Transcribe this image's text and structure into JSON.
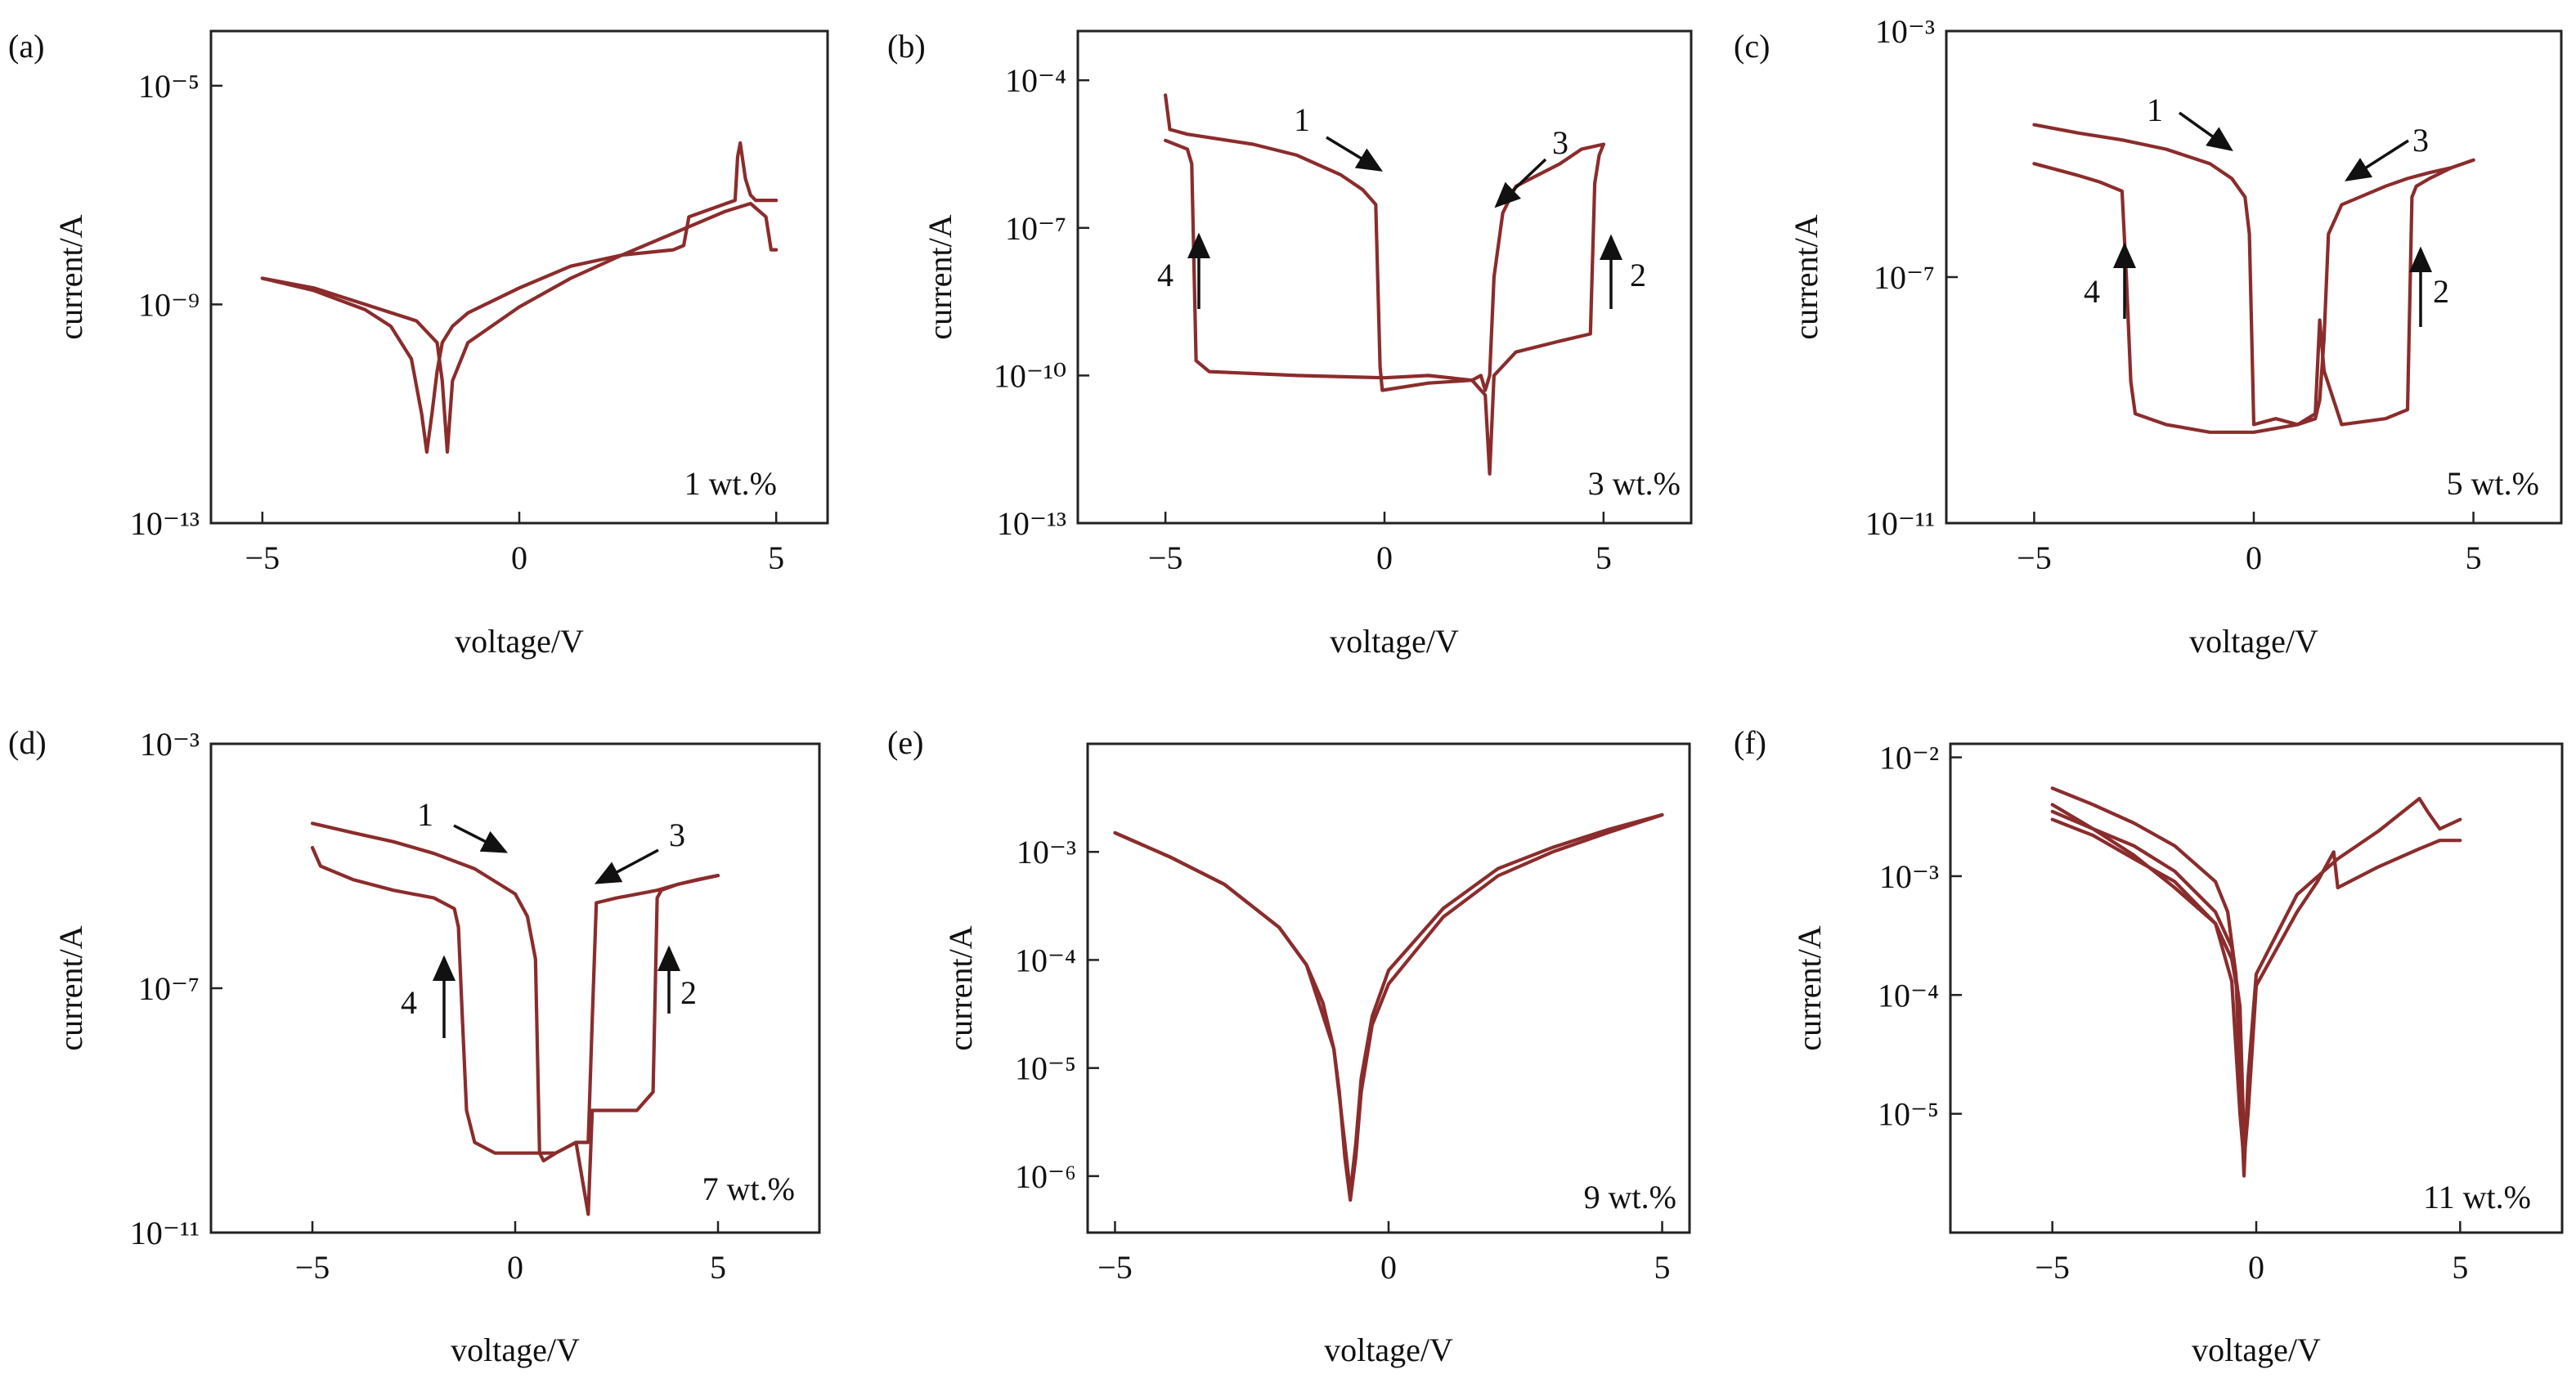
{
  "chart_data": [
    {
      "panel": "(a)",
      "type": "line",
      "annotation": "1 wt.%",
      "xlabel": "voltage/V",
      "ylabel": "current/A",
      "xlim": [
        -6.0,
        6.0
      ],
      "xticks": [
        -5,
        0,
        5
      ],
      "xtick_labels": [
        "−5",
        "0",
        "5"
      ],
      "ylog": true,
      "ylim": [
        1e-13,
        0.0001
      ],
      "yticks": [
        1e-13,
        1e-09,
        1e-05
      ],
      "ytick_labels": [
        "10⁻¹³",
        "10⁻⁹",
        "10⁻⁵"
      ],
      "color": "#8b2c2c",
      "series": [
        {
          "x": [
            -5,
            -4,
            -3,
            -2.5,
            -2.1,
            -1.9,
            -1.8,
            -1.7,
            -1.6,
            -1.5,
            -1.3,
            -1,
            0,
            1,
            2,
            3,
            3.2,
            3.3,
            4.2,
            4.25,
            4.3,
            4.4,
            4.5,
            4.6,
            4.7,
            5
          ],
          "y": [
            3e-09,
            1.8e-09,
            8e-10,
            4e-10,
            1e-10,
            1e-11,
            2e-12,
            1e-11,
            6e-11,
            2e-10,
            4e-10,
            7e-10,
            2e-09,
            5e-09,
            8e-09,
            1e-08,
            1.2e-08,
            4e-08,
            8e-08,
            5e-07,
            9e-07,
            2e-07,
            1e-07,
            8e-08,
            8e-08,
            8e-08
          ]
        },
        {
          "x": [
            5,
            4.9,
            4.8,
            4.5,
            4,
            3,
            2,
            1,
            0,
            -1,
            -1.3,
            -1.4,
            -1.5,
            -1.6,
            -2,
            -3,
            -4,
            -5
          ],
          "y": [
            1e-08,
            1e-08,
            4e-08,
            7e-08,
            5e-08,
            2e-08,
            8e-09,
            3e-09,
            9e-10,
            2e-10,
            4e-11,
            2e-12,
            4e-11,
            2e-10,
            5e-10,
            1e-09,
            2e-09,
            3e-09
          ]
        }
      ]
    },
    {
      "panel": "(b)",
      "type": "line",
      "annotation": "3 wt.%",
      "xlabel": "voltage/V",
      "ylabel": "current/A",
      "xlim": [
        -7.0,
        7.0
      ],
      "xticks": [
        -5,
        0,
        5
      ],
      "xtick_labels": [
        "−5",
        "0",
        "5"
      ],
      "ylog": true,
      "ylim": [
        1e-13,
        0.001
      ],
      "yticks": [
        1e-13,
        1e-10,
        1e-07,
        0.0001
      ],
      "ytick_labels": [
        "10⁻¹³",
        "10⁻¹⁰",
        "10⁻⁷",
        "10⁻⁴"
      ],
      "color": "#8b2c2c",
      "series": [
        {
          "x": [
            -5,
            -4.9,
            -4.5,
            -3,
            -2,
            -1,
            -0.5,
            -0.2,
            -0.1,
            -0.05,
            1,
            2,
            2.3,
            2.4,
            2.5,
            3,
            4,
            4.7,
            4.8,
            4.9,
            5
          ],
          "y": [
            5e-05,
            1e-05,
            8e-06,
            5e-06,
            3e-06,
            1.2e-06,
            6e-07,
            3e-07,
            1.5e-10,
            5e-11,
            7e-11,
            8e-11,
            4e-11,
            1e-12,
            1e-10,
            3e-10,
            5e-10,
            7e-10,
            8e-07,
            3e-06,
            5e-06
          ]
        },
        {
          "x": [
            5,
            4.5,
            4,
            3,
            2.7,
            2.5,
            2.4,
            2.3,
            2.2,
            2,
            1,
            0,
            -2,
            -4,
            -4.3,
            -4.4,
            -4.5,
            -5
          ],
          "y": [
            5e-06,
            4e-06,
            2e-06,
            7e-07,
            2e-07,
            1e-08,
            1e-10,
            5e-11,
            1e-10,
            8e-11,
            1e-10,
            9e-11,
            1e-10,
            1.2e-10,
            2e-10,
            2e-06,
            4e-06,
            6e-06
          ]
        }
      ]
    },
    {
      "panel": "(c)",
      "type": "line",
      "annotation": "5 wt.%",
      "xlabel": "voltage/V",
      "ylabel": "current/A",
      "xlim": [
        -7.0,
        7.0
      ],
      "xticks": [
        -5,
        0,
        5
      ],
      "xtick_labels": [
        "−5",
        "0",
        "5"
      ],
      "ylog": true,
      "ylim": [
        1e-11,
        0.001
      ],
      "yticks": [
        1e-11,
        1e-07,
        0.001
      ],
      "ytick_labels": [
        "10⁻¹¹",
        "10⁻⁷",
        "10⁻³"
      ],
      "color": "#8b2c2c",
      "series": [
        {
          "x": [
            -5,
            -4,
            -3,
            -2,
            -1,
            -0.5,
            -0.2,
            -0.1,
            0,
            0.5,
            1,
            1.4,
            1.5,
            1.6,
            2,
            3,
            3.5,
            3.6,
            3.7,
            4,
            4.5,
            5
          ],
          "y": [
            3e-05,
            2.2e-05,
            1.7e-05,
            1.2e-05,
            7e-06,
            4e-06,
            2e-06,
            5e-07,
            4e-10,
            5e-10,
            4e-10,
            6e-10,
            2e-08,
            3e-09,
            4e-10,
            5e-10,
            7e-10,
            2e-06,
            3e-06,
            4e-06,
            6e-06,
            8e-06
          ]
        },
        {
          "x": [
            5,
            4.5,
            4,
            3.5,
            3,
            2,
            1.7,
            1.6,
            1.5,
            1.4,
            1,
            0,
            -1,
            -2,
            -2.7,
            -2.8,
            -2.9,
            -3,
            -3.5,
            -4,
            -5
          ],
          "y": [
            8e-06,
            6e-06,
            5e-06,
            4e-06,
            3e-06,
            1.5e-06,
            5e-07,
            1e-08,
            1e-09,
            5e-10,
            4e-10,
            3e-10,
            3e-10,
            4e-10,
            6e-10,
            2e-09,
            1e-07,
            2.5e-06,
            3.5e-06,
            4.5e-06,
            7e-06
          ]
        }
      ]
    },
    {
      "panel": "(d)",
      "type": "line",
      "annotation": "7 wt.%",
      "xlabel": "voltage/V",
      "ylabel": "current/A",
      "xlim": [
        -7.5,
        7.5
      ],
      "xticks": [
        -5,
        0,
        5
      ],
      "xtick_labels": [
        "−5",
        "0",
        "5"
      ],
      "ylog": true,
      "ylim": [
        1e-11,
        0.001
      ],
      "yticks": [
        1e-11,
        1e-07,
        0.001
      ],
      "ytick_labels": [
        "10⁻¹¹",
        "10⁻⁷",
        "10⁻³"
      ],
      "color": "#8b2c2c",
      "series": [
        {
          "x": [
            -5,
            -4,
            -3,
            -2,
            -1,
            0,
            0.3,
            0.5,
            0.6,
            0.7,
            1,
            1.5,
            1.8,
            1.9,
            2.5,
            3,
            3.4,
            3.5,
            3.6,
            4,
            5
          ],
          "y": [
            5e-05,
            3.5e-05,
            2.5e-05,
            1.6e-05,
            9e-06,
            3.5e-06,
            1.5e-06,
            3e-07,
            2e-10,
            1.5e-10,
            2e-10,
            3e-10,
            2e-11,
            1e-09,
            1e-09,
            1e-09,
            2e-09,
            3e-06,
            4e-06,
            5e-06,
            7e-06
          ]
        },
        {
          "x": [
            5,
            4.5,
            4,
            3.5,
            2.5,
            2,
            1.9,
            1.8,
            1.5,
            1,
            0,
            -0.5,
            -1,
            -1.2,
            -1.3,
            -1.4,
            -1.5,
            -2,
            -3,
            -4,
            -4.8,
            -5
          ],
          "y": [
            7e-06,
            6e-06,
            5e-06,
            4e-06,
            3e-06,
            2.5e-06,
            3e-08,
            3e-10,
            3e-10,
            2e-10,
            2e-10,
            2e-10,
            3e-10,
            1e-09,
            3e-08,
            1e-06,
            2e-06,
            3e-06,
            4e-06,
            6e-06,
            1e-05,
            2e-05
          ]
        }
      ]
    },
    {
      "panel": "(e)",
      "type": "line",
      "annotation": "9 wt.%",
      "xlabel": "voltage/V",
      "ylabel": "current/A",
      "xlim": [
        -5.5,
        5.5
      ],
      "xticks": [
        -5,
        0,
        5
      ],
      "xtick_labels": [
        "−5",
        "0",
        "5"
      ],
      "ylog": true,
      "ylim": [
        3e-07,
        0.01
      ],
      "yticks": [
        1e-06,
        1e-05,
        0.0001,
        0.001
      ],
      "ytick_labels": [
        "10⁻⁶",
        "10⁻⁵",
        "10⁻⁴",
        "10⁻³"
      ],
      "color": "#8b2c2c",
      "series": [
        {
          "x": [
            -5,
            -4,
            -3,
            -2,
            -1.5,
            -1.2,
            -1,
            -0.9,
            -0.8,
            -0.7,
            -0.6,
            -0.5,
            -0.3,
            0,
            1,
            2,
            3,
            4,
            5
          ],
          "y": [
            0.0015,
            0.0009,
            0.0005,
            0.0002,
            9e-05,
            4e-05,
            1.5e-05,
            6e-06,
            1.5e-06,
            6e-07,
            1.5e-06,
            6e-06,
            2.5e-05,
            6e-05,
            0.00025,
            0.0006,
            0.001,
            0.0015,
            0.0022
          ]
        },
        {
          "x": [
            5,
            4,
            3,
            2,
            1,
            0,
            -0.3,
            -0.5,
            -0.6,
            -0.7,
            -0.8,
            -1,
            -1.5,
            -2,
            -3,
            -4,
            -5
          ],
          "y": [
            0.0022,
            0.0016,
            0.0011,
            0.0007,
            0.0003,
            8e-05,
            3e-05,
            8e-06,
            2e-06,
            7e-07,
            2e-06,
            1.5e-05,
            9e-05,
            0.0002,
            0.0005,
            0.0009,
            0.0015
          ]
        }
      ]
    },
    {
      "panel": "(f)",
      "type": "line",
      "annotation": "11 wt.%",
      "xlabel": "voltage/V",
      "ylabel": "current/A",
      "xlim": [
        -7.5,
        7.5
      ],
      "xticks": [
        -5,
        0,
        5
      ],
      "xtick_labels": [
        "−5",
        "0",
        "5"
      ],
      "ylog": true,
      "ylim": [
        1e-06,
        0.013
      ],
      "yticks": [
        1e-05,
        0.0001,
        0.001,
        0.01
      ],
      "ytick_labels": [
        "10⁻⁵",
        "10⁻⁴",
        "10⁻³",
        "10⁻²"
      ],
      "color": "#8b2c2c",
      "series": [
        {
          "x": [
            -5,
            -4,
            -3,
            -2,
            -1,
            -0.7,
            -0.5,
            -0.4,
            -0.3,
            -0.2,
            0,
            1,
            2,
            3,
            4,
            4.2,
            4.5,
            5
          ],
          "y": [
            0.0055,
            0.004,
            0.0028,
            0.0018,
            0.0009,
            0.0005,
            0.00015,
            2e-05,
            3e-06,
            2e-05,
            0.00015,
            0.0007,
            0.0014,
            0.0024,
            0.0045,
            0.0035,
            0.0025,
            0.003
          ]
        },
        {
          "x": [
            5,
            4.5,
            4,
            3,
            2,
            1.9,
            1.5,
            1,
            0,
            -0.2,
            -0.3,
            -0.4,
            -0.6,
            -1,
            -2,
            -3,
            -4,
            -5
          ],
          "y": [
            0.002,
            0.002,
            0.0017,
            0.0012,
            0.0008,
            0.0016,
            0.0009,
            0.0005,
            0.00012,
            1e-05,
            4e-06,
            1e-05,
            0.00013,
            0.0004,
            0.0008,
            0.0015,
            0.0025,
            0.004
          ]
        },
        {
          "x": [
            -5,
            -4,
            -3,
            -2,
            -1,
            -0.6,
            -0.4,
            -0.3,
            -0.4,
            -0.6,
            -1,
            -2,
            -3,
            -4,
            -5
          ],
          "y": [
            0.0035,
            0.0025,
            0.0018,
            0.0011,
            0.0005,
            0.00025,
            8e-05,
            6e-06,
            8e-05,
            0.0002,
            0.0004,
            0.0009,
            0.0014,
            0.0022,
            0.003
          ]
        }
      ]
    }
  ],
  "arrows": {
    "b": [
      {
        "label": "1"
      },
      {
        "label": "3"
      },
      {
        "label": "4"
      },
      {
        "label": "2"
      }
    ],
    "c": [
      {
        "label": "1"
      },
      {
        "label": "3"
      },
      {
        "label": "4"
      },
      {
        "label": "2"
      }
    ],
    "d": [
      {
        "label": "1"
      },
      {
        "label": "3"
      },
      {
        "label": "4"
      },
      {
        "label": "2"
      }
    ]
  }
}
